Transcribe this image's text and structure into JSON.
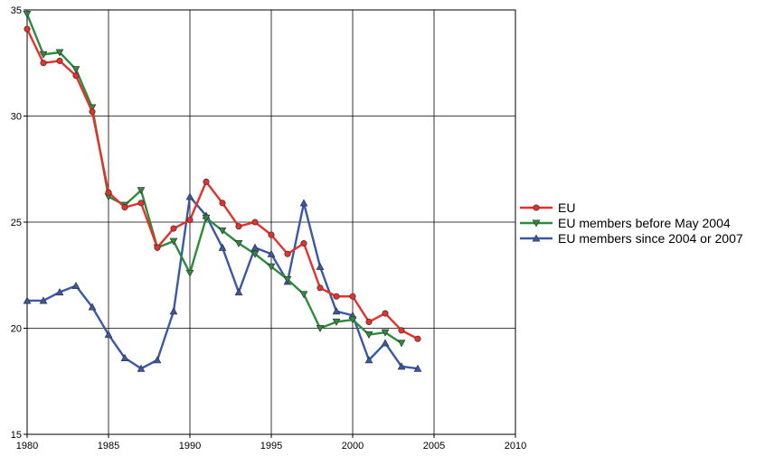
{
  "chart_data": {
    "type": "line",
    "title": "",
    "xlabel": "",
    "ylabel": "",
    "xlim": [
      1980,
      2010
    ],
    "ylim": [
      15,
      35
    ],
    "xticks": [
      1980,
      1985,
      1990,
      1995,
      2000,
      2005,
      2010
    ],
    "yticks": [
      15,
      20,
      25,
      30,
      35
    ],
    "xtick_labels": [
      "1980",
      "1985",
      "1990",
      "1995",
      "2000",
      "2005",
      "2010"
    ],
    "ytick_labels": [
      "15",
      "20",
      "25",
      "30",
      "35"
    ],
    "grid": true,
    "legend_position": "right",
    "x": [
      1980,
      1981,
      1982,
      1983,
      1984,
      1985,
      1986,
      1987,
      1988,
      1989,
      1990,
      1991,
      1992,
      1993,
      1994,
      1995,
      1996,
      1997,
      1998,
      1999,
      2000,
      2001,
      2002,
      2003,
      2004
    ],
    "series": [
      {
        "name": "EU",
        "color": "#e8302a",
        "marker": "circle",
        "values": [
          34.1,
          32.5,
          32.6,
          31.9,
          30.2,
          26.4,
          25.7,
          25.9,
          23.8,
          24.7,
          25.1,
          26.9,
          25.9,
          24.8,
          25.0,
          24.4,
          23.5,
          24.0,
          21.9,
          21.5,
          21.5,
          20.3,
          20.7,
          19.9,
          19.5
        ]
      },
      {
        "name": "EU members before May 2004",
        "color": "#2c8c3c",
        "marker": "triangle-down",
        "values": [
          34.8,
          32.9,
          33.0,
          32.2,
          30.4,
          26.2,
          25.8,
          26.5,
          23.8,
          24.1,
          22.6,
          25.2,
          24.6,
          24.0,
          23.5,
          22.9,
          22.3,
          21.6,
          20.0,
          20.3,
          20.4,
          19.7,
          19.8,
          19.3,
          null
        ]
      },
      {
        "name": "EU members since 2004 or 2007",
        "color": "#3a58a8",
        "marker": "triangle-up",
        "values": [
          21.3,
          21.3,
          21.7,
          22.0,
          21.0,
          19.7,
          18.6,
          18.1,
          18.5,
          20.8,
          26.2,
          25.3,
          23.8,
          21.7,
          23.8,
          23.5,
          22.2,
          25.9,
          22.9,
          20.8,
          20.6,
          18.5,
          19.3,
          18.2,
          18.1
        ]
      }
    ]
  }
}
